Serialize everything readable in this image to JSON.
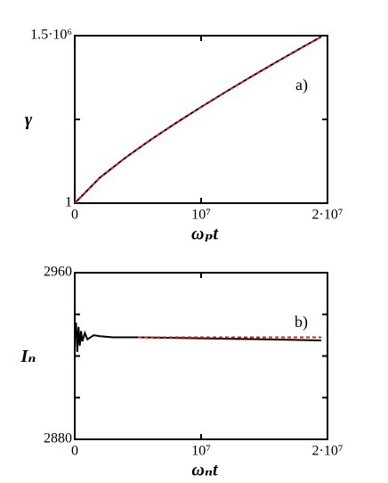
{
  "chart_data": [
    {
      "type": "line",
      "annotation": "a)",
      "ylabel": "γ",
      "xlabel": "ωₚt",
      "xlim": [
        0,
        20000000
      ],
      "ylim": [
        1,
        1500000
      ],
      "xticks": [
        0,
        {
          "value": 10000000,
          "label": "10⁷"
        },
        {
          "value": 20000000,
          "label": "2·10⁷"
        }
      ],
      "yticks": [
        1,
        {
          "value": 1500000,
          "label": "1.5·10⁶"
        }
      ],
      "yminor": [
        750000
      ],
      "series": [
        {
          "color": "#000000",
          "dash": false,
          "x": [
            0,
            2000000,
            4000000,
            6000000,
            8000000,
            10000000,
            12000000,
            14000000,
            16000000,
            18000000,
            19500000
          ],
          "values": [
            1,
            230000,
            406000,
            567000,
            717000,
            861000,
            1000000,
            1135000,
            1267000,
            1395000,
            1490000
          ]
        },
        {
          "color": "#d62020",
          "dash": true,
          "x": [
            0,
            2000000,
            4000000,
            6000000,
            8000000,
            10000000,
            12000000,
            14000000,
            16000000,
            18000000,
            19500000
          ],
          "values": [
            1,
            230000,
            406000,
            567000,
            717000,
            861000,
            1000000,
            1135000,
            1267000,
            1395000,
            1490000
          ]
        }
      ]
    },
    {
      "type": "line",
      "annotation": "b)",
      "ylabel": "Iₙ",
      "xlabel": "ωₙt",
      "xlim": [
        0,
        20000000
      ],
      "ylim": [
        2880,
        2960
      ],
      "xticks": [
        0,
        {
          "value": 10000000,
          "label": "10⁷"
        },
        {
          "value": 20000000,
          "label": "2·10⁷"
        }
      ],
      "yticks": [
        2880,
        2960
      ],
      "yminor": [
        2900,
        2920,
        2940
      ],
      "series": [
        {
          "color": "#000000",
          "dash": false,
          "x": [
            0,
            100000,
            200000,
            300000,
            400000,
            500000,
            600000,
            800000,
            1000000,
            1500000,
            2000000,
            3000000,
            5000000,
            10000000,
            15000000,
            19500000
          ],
          "values": [
            2929,
            2936,
            2922,
            2934,
            2925,
            2932,
            2927,
            2931,
            2928,
            2930,
            2929.5,
            2929,
            2929,
            2928.5,
            2928,
            2927.5
          ]
        },
        {
          "color": "#d62020",
          "dash": true,
          "x": [
            5000000,
            10000000,
            15000000,
            19500000
          ],
          "values": [
            2929,
            2929,
            2929,
            2929
          ]
        }
      ]
    }
  ]
}
